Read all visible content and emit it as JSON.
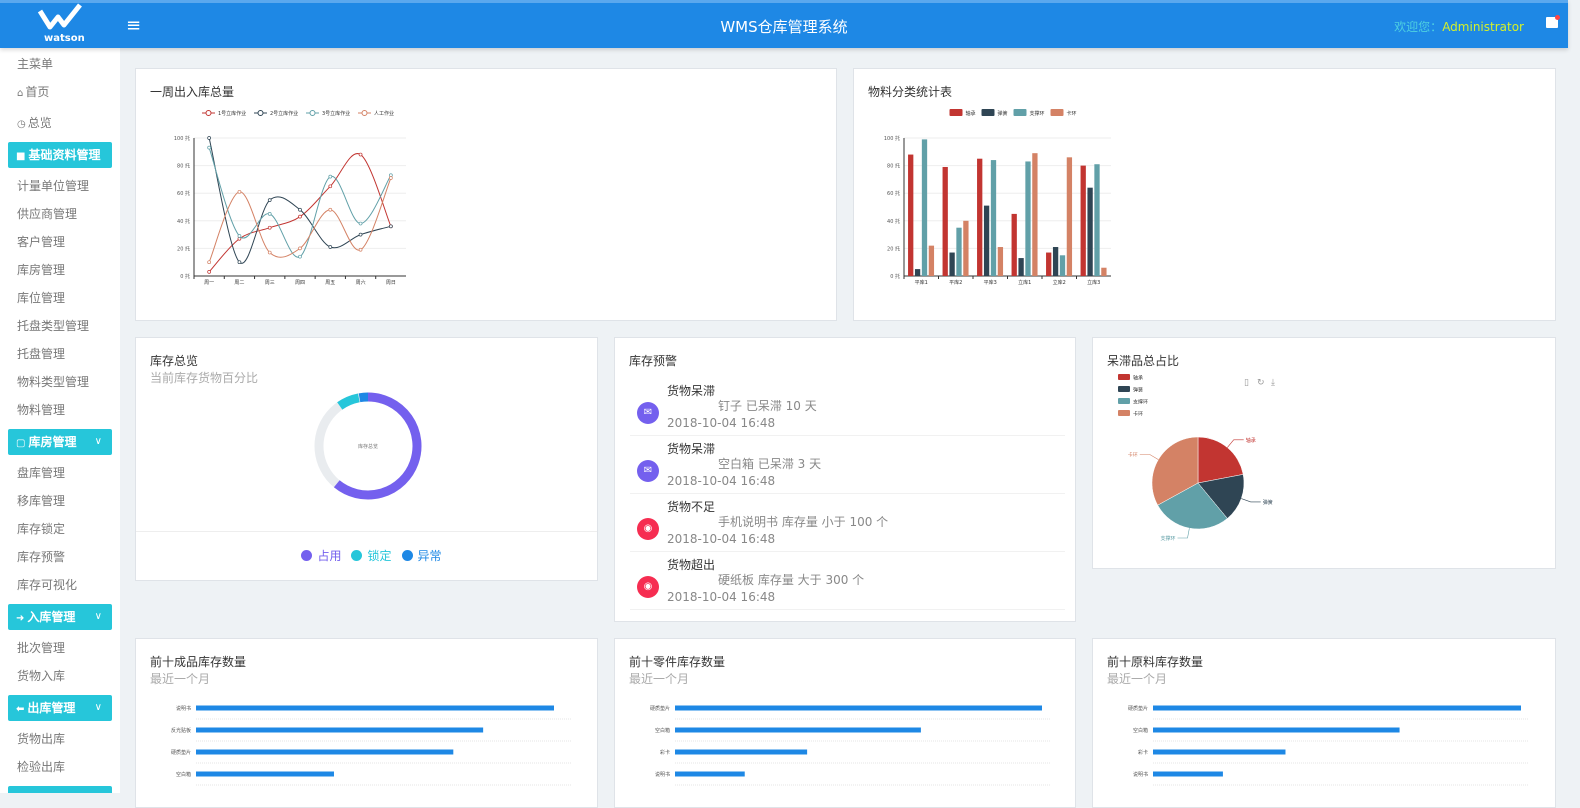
{
  "header": {
    "logo_text": "watson",
    "title": "WMS仓库管理系统",
    "welcome": "欢迎您：",
    "user": "Administrator",
    "menu_icon": "hamburger-icon",
    "flag_icon": "flag-icon"
  },
  "sidebar": {
    "title": "主菜单",
    "home": "首页",
    "overview": "总览",
    "groups": [
      {
        "label": "基础资料管理",
        "icon": "folder-icon",
        "items": [
          "计量单位管理",
          "供应商管理",
          "客户管理",
          "库房管理",
          "库位管理",
          "托盘类型管理",
          "托盘管理",
          "物料类型管理",
          "物料管理"
        ]
      },
      {
        "label": "库房管理",
        "icon": "square-icon",
        "items": [
          "盘库管理",
          "移库管理",
          "库存锁定",
          "库存预警",
          "库存可视化"
        ]
      },
      {
        "label": "入库管理",
        "icon": "arrow-right-icon",
        "items": [
          "批次管理",
          "货物入库"
        ]
      },
      {
        "label": "出库管理",
        "icon": "arrow-left-icon",
        "items": [
          "货物出库",
          "检验出库"
        ]
      }
    ]
  },
  "colors": {
    "header": "#1e88e5",
    "group": "#26c6da",
    "bar": "#1e88e5",
    "series": [
      "#c23531",
      "#2f4554",
      "#61a0a8",
      "#d48265"
    ]
  },
  "weekly": {
    "title": "一周出入库总量"
  },
  "material": {
    "title": "物料分类统计表"
  },
  "stock_overview": {
    "title": "库存总览",
    "subtitle": "当前库存货物百分比"
  },
  "warnings": {
    "title": "库存预警",
    "items": [
      {
        "title": "货物呆滞",
        "detail": "钉子 已呆滞 10 天",
        "date": "2018-10-04 16:48",
        "color": "#7460ee",
        "icon": "mail-icon"
      },
      {
        "title": "货物呆滞",
        "detail": "空白箱 已呆滞 3 天",
        "date": "2018-10-04 16:48",
        "color": "#7460ee",
        "icon": "mail-icon"
      },
      {
        "title": "货物不足",
        "detail": "手机说明书 库存量 小于 100 个",
        "date": "2018-10-04 16:48",
        "color": "#f62d51",
        "icon": "globe-icon"
      },
      {
        "title": "货物超出",
        "detail": "硬纸板 库存量 大于 300 个",
        "date": "2018-10-04 16:48",
        "color": "#f62d51",
        "icon": "globe-icon"
      }
    ]
  },
  "stagnant": {
    "title": "呆滞品总占比",
    "tool_icons": [
      "data-view-icon",
      "restore-icon",
      "download-icon"
    ]
  },
  "top_products": {
    "title": "前十成品库存数量",
    "subtitle": "最近一个月"
  },
  "top_parts": {
    "title": "前十零件库存数量",
    "subtitle": "最近一个月"
  },
  "top_raw": {
    "title": "前十原料库存数量",
    "subtitle": "最近一个月"
  },
  "chart_data": [
    {
      "type": "line",
      "smooth": true,
      "categories": [
        "周一",
        "周二",
        "周三",
        "周四",
        "周五",
        "周六",
        "周日"
      ],
      "ylim": [
        0,
        100
      ],
      "yticks": [
        "0 托",
        "20 托",
        "40 托",
        "60 托",
        "80 托",
        "100 托"
      ],
      "grid": true,
      "legend": "top",
      "series": [
        {
          "name": "1号立库作业",
          "values": [
            3,
            27,
            35,
            43,
            65,
            88,
            36
          ]
        },
        {
          "name": "2号立库作业",
          "values": [
            100,
            10,
            55,
            48,
            21,
            30,
            36
          ]
        },
        {
          "name": "3号立库作业",
          "values": [
            93,
            29,
            45,
            14,
            72,
            38,
            73
          ]
        },
        {
          "name": "人工作业",
          "values": [
            10,
            61,
            17,
            20,
            48,
            19,
            71
          ]
        }
      ]
    },
    {
      "type": "bar",
      "categories": [
        "平库1",
        "平库2",
        "平库3",
        "立库1",
        "立库2",
        "立库3"
      ],
      "ylim": [
        0,
        100
      ],
      "yticks": [
        "0 托",
        "20 托",
        "40 托",
        "60 托",
        "80 托",
        "100 托"
      ],
      "grid": true,
      "legend": "top",
      "series": [
        {
          "name": "轴承",
          "values": [
            88,
            79,
            85,
            45,
            17,
            80
          ]
        },
        {
          "name": "弹簧",
          "values": [
            5,
            17,
            51,
            13,
            21,
            64
          ]
        },
        {
          "name": "支撑环",
          "values": [
            99,
            35,
            84,
            83,
            15,
            81
          ]
        },
        {
          "name": "卡环",
          "values": [
            22,
            40,
            21,
            89,
            86,
            6
          ]
        }
      ]
    },
    {
      "type": "pie",
      "variant": "donut",
      "center_label": "库存总览",
      "slices": [
        {
          "name": "占用",
          "value": 61,
          "color": "#7460ee"
        },
        {
          "name": "锁定",
          "value": 7,
          "color": "#26c6da"
        },
        {
          "name": "异常",
          "value": 3,
          "color": "#1e88e5"
        }
      ],
      "legend": "bottom"
    },
    {
      "type": "pie",
      "slices": [
        {
          "name": "轴承",
          "value": 22
        },
        {
          "name": "弹簧",
          "value": 17
        },
        {
          "name": "支撑环",
          "value": 28
        },
        {
          "name": "卡环",
          "value": 33
        }
      ],
      "legend": "top-left"
    },
    {
      "type": "bar",
      "orientation": "horizontal",
      "categories": [
        "说明书",
        "反光贴板",
        "硬质垫片",
        "空白箱"
      ],
      "values": [
        96,
        77,
        69,
        37
      ]
    },
    {
      "type": "bar",
      "orientation": "horizontal",
      "categories": [
        "硬质垫片",
        "空白箱",
        "彩卡",
        "说明书"
      ],
      "values": [
        100,
        67,
        36,
        19
      ]
    },
    {
      "type": "bar",
      "orientation": "horizontal",
      "categories": [
        "硬质垫片",
        "空白箱",
        "彩卡",
        "说明书"
      ],
      "values": [
        100,
        67,
        36,
        19
      ]
    }
  ]
}
